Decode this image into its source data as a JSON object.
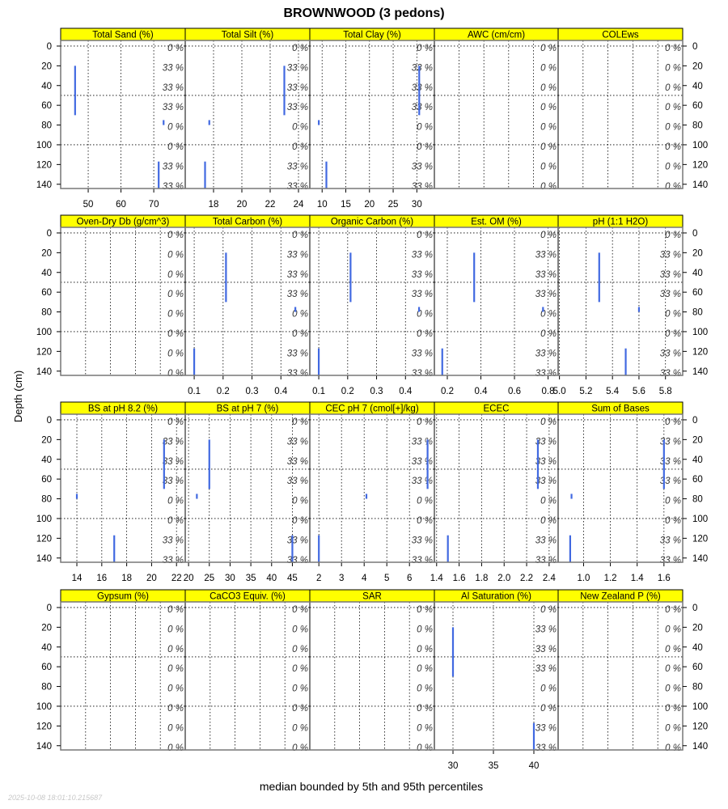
{
  "chart_data": {
    "type": "line",
    "title": "BROWNWOOD (3 pedons)",
    "xlabel": "median bounded by 5th and 95th percentiles",
    "ylabel": "Depth (cm)",
    "ylim": [
      144.3,
      -5.7
    ],
    "depth_ticks": [
      "0",
      "20",
      "40",
      "60",
      "80",
      "100",
      "120",
      "140"
    ],
    "depth_tick_values": [
      0,
      20,
      40,
      60,
      80,
      100,
      120,
      140
    ],
    "hgrid": [
      0,
      50,
      100
    ],
    "pct_depths": [
      0,
      20,
      40,
      60,
      80,
      100,
      120,
      140
    ],
    "timestamp": "2025-10-08 18:01:10.215687",
    "series_color": "#4169E1",
    "strip_color": "#FFFF00",
    "grid": true,
    "panels": [
      {
        "title": "Total Sand (%)",
        "xlim": [
          41.6,
          79.6
        ],
        "ticks": [
          50,
          60,
          70
        ],
        "tick_labels": [
          "50",
          "60",
          "70"
        ],
        "segments": [
          {
            "top": 20,
            "bottom": 70,
            "value": 46
          },
          {
            "top": 75,
            "bottom": 80,
            "value": 73
          },
          {
            "top": 117,
            "bottom": 150,
            "value": 71.5
          }
        ],
        "pct": [
          "0 %",
          "33 %",
          "33 %",
          "33 %",
          "0 %",
          "0 %",
          "33 %",
          "33 %"
        ]
      },
      {
        "title": "Total Silt (%)",
        "xlim": [
          16.0,
          24.8
        ],
        "ticks": [
          18,
          20,
          22,
          24
        ],
        "tick_labels": [
          "18",
          "20",
          "22",
          "24"
        ],
        "segments": [
          {
            "top": 20,
            "bottom": 70,
            "value": 23.0
          },
          {
            "top": 75,
            "bottom": 80,
            "value": 17.7
          },
          {
            "top": 117,
            "bottom": 150,
            "value": 17.4
          }
        ],
        "pct": [
          "0 %",
          "33 %",
          "33 %",
          "33 %",
          "0 %",
          "0 %",
          "33 %",
          "33 %"
        ]
      },
      {
        "title": "Total Clay (%)",
        "xlim": [
          7.4,
          33.7
        ],
        "ticks": [
          10,
          15,
          20,
          25,
          30
        ],
        "tick_labels": [
          "10",
          "15",
          "20",
          "25",
          "30"
        ],
        "segments": [
          {
            "top": 20,
            "bottom": 70,
            "value": 30.5
          },
          {
            "top": 75,
            "bottom": 80,
            "value": 9.3
          },
          {
            "top": 117,
            "bottom": 150,
            "value": 10.9
          }
        ],
        "pct": [
          "0 %",
          "33 %",
          "33 %",
          "33 %",
          "0 %",
          "0 %",
          "33 %",
          "33 %"
        ]
      },
      {
        "title": "AWC (cm/cm)",
        "xlim": null,
        "ticks": [],
        "tick_labels": [],
        "segments": [],
        "pct": [
          "0 %",
          "0 %",
          "0 %",
          "0 %",
          "0 %",
          "0 %",
          "0 %",
          "0 %"
        ]
      },
      {
        "title": "COLEws",
        "xlim": null,
        "ticks": [],
        "tick_labels": [],
        "segments": [],
        "pct": [
          "0 %",
          "0 %",
          "0 %",
          "0 %",
          "0 %",
          "0 %",
          "0 %",
          "0 %"
        ]
      },
      {
        "title": "Oven-Dry Db (g/cm^3)",
        "xlim": null,
        "ticks": [],
        "tick_labels": [],
        "segments": [],
        "pct": [
          "0 %",
          "0 %",
          "0 %",
          "0 %",
          "0 %",
          "0 %",
          "0 %",
          "0 %"
        ]
      },
      {
        "title": "Total Carbon (%)",
        "xlim": [
          0.069,
          0.5
        ],
        "ticks": [
          0.1,
          0.2,
          0.3,
          0.4
        ],
        "tick_labels": [
          "0.1",
          "0.2",
          "0.3",
          "0.4"
        ],
        "segments": [
          {
            "top": 20,
            "bottom": 70,
            "value": 0.21
          },
          {
            "top": 75,
            "bottom": 80,
            "value": 0.45
          },
          {
            "top": 117,
            "bottom": 150,
            "value": 0.1
          }
        ],
        "pct": [
          "0 %",
          "33 %",
          "33 %",
          "33 %",
          "0 %",
          "0 %",
          "33 %",
          "33 %"
        ]
      },
      {
        "title": "Organic Carbon (%)",
        "xlim": [
          0.069,
          0.5
        ],
        "ticks": [
          0.1,
          0.2,
          0.3,
          0.4
        ],
        "tick_labels": [
          "0.1",
          "0.2",
          "0.3",
          "0.4"
        ],
        "segments": [
          {
            "top": 20,
            "bottom": 70,
            "value": 0.21
          },
          {
            "top": 75,
            "bottom": 80,
            "value": 0.447
          },
          {
            "top": 117,
            "bottom": 150,
            "value": 0.1
          }
        ],
        "pct": [
          "0 %",
          "33 %",
          "33 %",
          "33 %",
          "0 %",
          "0 %",
          "33 %",
          "33 %"
        ]
      },
      {
        "title": "Est. OM (%)",
        "xlim": [
          0.123,
          0.86
        ],
        "ticks": [
          0.2,
          0.4,
          0.6,
          0.8
        ],
        "tick_labels": [
          "0.2",
          "0.4",
          "0.6",
          "0.8"
        ],
        "segments": [
          {
            "top": 20,
            "bottom": 70,
            "value": 0.36
          },
          {
            "top": 75,
            "bottom": 80,
            "value": 0.77
          },
          {
            "top": 117,
            "bottom": 150,
            "value": 0.17
          }
        ],
        "pct": [
          "0 %",
          "33 %",
          "33 %",
          "33 %",
          "0 %",
          "0 %",
          "33 %",
          "33 %"
        ]
      },
      {
        "title": "pH (1:1 H2O)",
        "xlim": [
          4.99,
          5.93
        ],
        "ticks": [
          5.0,
          5.2,
          5.4,
          5.6,
          5.8
        ],
        "tick_labels": [
          "5.0",
          "5.2",
          "5.4",
          "5.6",
          "5.8"
        ],
        "segments": [
          {
            "top": 20,
            "bottom": 70,
            "value": 5.3
          },
          {
            "top": 75,
            "bottom": 80,
            "value": 5.6
          },
          {
            "top": 117,
            "bottom": 150,
            "value": 5.5
          }
        ],
        "pct": [
          "0 %",
          "33 %",
          "33 %",
          "33 %",
          "0 %",
          "0 %",
          "33 %",
          "33 %"
        ]
      },
      {
        "title": "BS at pH 8.2 (%)",
        "xlim": [
          12.7,
          22.7
        ],
        "ticks": [
          14,
          16,
          18,
          20,
          22
        ],
        "tick_labels": [
          "14",
          "16",
          "18",
          "20",
          "22"
        ],
        "segments": [
          {
            "top": 20,
            "bottom": 70,
            "value": 21
          },
          {
            "top": 75,
            "bottom": 80,
            "value": 14
          },
          {
            "top": 117,
            "bottom": 150,
            "value": 17
          }
        ],
        "pct": [
          "0 %",
          "33 %",
          "33 %",
          "33 %",
          "0 %",
          "0 %",
          "33 %",
          "33 %"
        ]
      },
      {
        "title": "BS at pH 7 (%)",
        "xlim": [
          19.2,
          49.2
        ],
        "ticks": [
          20,
          25,
          30,
          35,
          40,
          45
        ],
        "tick_labels": [
          "20",
          "25",
          "30",
          "35",
          "40",
          "45"
        ],
        "segments": [
          {
            "top": 20,
            "bottom": 70,
            "value": 25
          },
          {
            "top": 75,
            "bottom": 80,
            "value": 22
          },
          {
            "top": 117,
            "bottom": 150,
            "value": 45
          }
        ],
        "pct": [
          "0 %",
          "33 %",
          "33 %",
          "33 %",
          "0 %",
          "0 %",
          "33 %",
          "33 %"
        ]
      },
      {
        "title": "CEC pH 7 (cmol[+]/kg)",
        "xlim": [
          1.6,
          7.1
        ],
        "ticks": [
          2,
          3,
          4,
          5,
          6
        ],
        "tick_labels": [
          "2",
          "3",
          "4",
          "5",
          "6"
        ],
        "segments": [
          {
            "top": 20,
            "bottom": 70,
            "value": 6.8
          },
          {
            "top": 75,
            "bottom": 80,
            "value": 4.1
          },
          {
            "top": 117,
            "bottom": 150,
            "value": 2.0
          }
        ],
        "pct": [
          "0 %",
          "33 %",
          "33 %",
          "33 %",
          "0 %",
          "0 %",
          "33 %",
          "33 %"
        ]
      },
      {
        "title": "ECEC",
        "xlim": [
          1.38,
          2.48
        ],
        "ticks": [
          1.4,
          1.6,
          1.8,
          2.0,
          2.2,
          2.4
        ],
        "tick_labels": [
          "1.4",
          "1.6",
          "1.8",
          "2.0",
          "2.2",
          "2.4"
        ],
        "segments": [
          {
            "top": 20,
            "bottom": 70,
            "value": 2.3
          },
          {
            "top": 117,
            "bottom": 150,
            "value": 1.5
          }
        ],
        "pct": [
          "0 %",
          "33 %",
          "33 %",
          "33 %",
          "0 %",
          "0 %",
          "33 %",
          "33 %"
        ]
      },
      {
        "title": "Sum of Bases",
        "xlim": [
          0.81,
          1.74
        ],
        "ticks": [
          1.0,
          1.2,
          1.4,
          1.6
        ],
        "tick_labels": [
          "1.0",
          "1.2",
          "1.4",
          "1.6"
        ],
        "segments": [
          {
            "top": 20,
            "bottom": 70,
            "value": 1.6
          },
          {
            "top": 75,
            "bottom": 80,
            "value": 0.91
          },
          {
            "top": 117,
            "bottom": 150,
            "value": 0.9
          }
        ],
        "pct": [
          "0 %",
          "33 %",
          "33 %",
          "33 %",
          "0 %",
          "0 %",
          "33 %",
          "33 %"
        ]
      },
      {
        "title": "Gypsum (%)",
        "xlim": null,
        "ticks": [],
        "tick_labels": [],
        "segments": [],
        "pct": [
          "0 %",
          "0 %",
          "0 %",
          "0 %",
          "0 %",
          "0 %",
          "0 %",
          "0 %"
        ]
      },
      {
        "title": "CaCO3 Equiv. (%)",
        "xlim": null,
        "ticks": [],
        "tick_labels": [],
        "segments": [],
        "pct": [
          "0 %",
          "0 %",
          "0 %",
          "0 %",
          "0 %",
          "0 %",
          "0 %",
          "0 %"
        ]
      },
      {
        "title": "SAR",
        "xlim": null,
        "ticks": [],
        "tick_labels": [],
        "segments": [],
        "pct": [
          "0 %",
          "0 %",
          "0 %",
          "0 %",
          "0 %",
          "0 %",
          "0 %",
          "0 %"
        ]
      },
      {
        "title": "Al Saturation (%)",
        "xlim": [
          27.7,
          43
        ],
        "ticks": [
          30,
          35,
          40
        ],
        "tick_labels": [
          "30",
          "35",
          "40"
        ],
        "segments": [
          {
            "top": 20,
            "bottom": 70,
            "value": 30
          },
          {
            "top": 117,
            "bottom": 150,
            "value": 40
          }
        ],
        "pct": [
          "0 %",
          "33 %",
          "33 %",
          "33 %",
          "0 %",
          "0 %",
          "33 %",
          "33 %"
        ]
      },
      {
        "title": "New Zealand P (%)",
        "xlim": null,
        "ticks": [],
        "tick_labels": [],
        "segments": [],
        "pct": [
          "0 %",
          "0 %",
          "0 %",
          "0 %",
          "0 %",
          "0 %",
          "0 %",
          "0 %"
        ]
      }
    ]
  }
}
